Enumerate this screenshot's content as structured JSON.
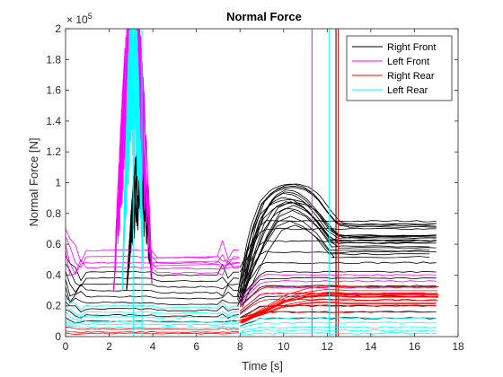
{
  "chart_data": {
    "type": "line",
    "title": "Normal Force",
    "xlabel": "Time [s]",
    "ylabel": "Normal Force [N]",
    "y_exponent_label": "× 10",
    "y_exponent_power": "5",
    "xlim": [
      0,
      18
    ],
    "ylim": [
      0,
      2
    ],
    "x_ticks": [
      0,
      2,
      4,
      6,
      8,
      10,
      12,
      14,
      16,
      18
    ],
    "x_tick_labels": [
      "0",
      "2",
      "4",
      "6",
      "8",
      "10",
      "12",
      "14",
      "16",
      "18"
    ],
    "y_ticks": [
      0,
      0.2,
      0.4,
      0.6,
      0.8,
      1,
      1.2,
      1.4,
      1.6,
      1.8,
      2
    ],
    "y_tick_labels": [
      "0",
      "0.2",
      "0.4",
      "0.6",
      "0.8",
      "1",
      "1.2",
      "1.4",
      "1.6",
      "1.8",
      "2"
    ],
    "y_units_note": "× 10^5 N",
    "grid": false,
    "legend_position": "top-right",
    "series": [
      {
        "name": "Right Front",
        "color": "#000000",
        "baseline_levels": [
          0.42,
          0.38,
          0.34,
          0.3,
          0.26,
          0.22,
          0.18,
          0.14,
          0.1
        ],
        "late_levels": [
          0.75,
          0.7,
          0.62,
          0.55,
          0.48,
          0.42,
          0.38,
          0.33,
          0.26,
          0.2,
          0.16,
          0.12
        ],
        "peak_curves": [
          {
            "x": [
              8.0,
              8.5,
              9.0,
              9.5,
              10.0,
              10.5,
              11.0,
              11.5,
              12.0,
              12.5,
              13.0
            ],
            "y": [
              0.3,
              0.7,
              0.9,
              0.98,
              1.01,
              1.02,
              1.0,
              0.95,
              0.85,
              0.76,
              0.75
            ]
          },
          {
            "x": [
              8.0,
              8.5,
              9.0,
              9.5,
              10.0,
              10.5,
              11.0,
              11.5,
              12.0,
              12.5
            ],
            "y": [
              0.25,
              0.55,
              0.78,
              0.9,
              0.94,
              0.93,
              0.88,
              0.8,
              0.7,
              0.65
            ]
          },
          {
            "x": [
              8.0,
              8.6,
              9.2,
              9.8,
              10.4,
              11.0,
              11.6,
              12.2
            ],
            "y": [
              0.22,
              0.45,
              0.65,
              0.8,
              0.84,
              0.8,
              0.72,
              0.6
            ]
          }
        ],
        "spike_window": [
          2.8,
          4.0
        ],
        "spike_peak": 1.0,
        "vertical_lines": [
          12.4
        ],
        "end_x": 17.0
      },
      {
        "name": "Left Front",
        "color": "#FF00FF",
        "baseline_levels": [
          0.56,
          0.52,
          0.48,
          0.45
        ],
        "mid_levels": [
          0.51,
          0.48,
          0.46
        ],
        "late_levels": [
          0.4,
          0.36,
          0.32,
          0.28
        ],
        "spike_window": [
          2.2,
          4.0
        ],
        "spike_peak": 2.0,
        "vertical_lines": [
          11.3
        ],
        "end_x": 17.0
      },
      {
        "name": "Right Rear",
        "color": "#FF0000",
        "baseline_levels": [
          0.05,
          0.03,
          0.02
        ],
        "late_levels": [
          0.32,
          0.28,
          0.24,
          0.2,
          0.16
        ],
        "peak_curves": [
          {
            "x": [
              8.0,
              9.0,
              10.0,
              11.0,
              12.0,
              13.0,
              17.0
            ],
            "y": [
              0.1,
              0.18,
              0.26,
              0.3,
              0.32,
              0.31,
              0.31
            ]
          },
          {
            "x": [
              8.0,
              9.0,
              10.0,
              11.0,
              12.0,
              13.0,
              17.0
            ],
            "y": [
              0.12,
              0.16,
              0.22,
              0.25,
              0.26,
              0.25,
              0.25
            ]
          }
        ],
        "vertical_lines": [
          12.5
        ],
        "end_x": 17.0
      },
      {
        "name": "Left Rear",
        "color": "#00FFFF",
        "baseline_levels": [
          0.2,
          0.16,
          0.13,
          0.1,
          0.08,
          0.06
        ],
        "late_levels": [
          0.12,
          0.09,
          0.06,
          0.04,
          0.02
        ],
        "spike_window": [
          2.6,
          3.6
        ],
        "spike_peak": 2.0,
        "vertical_lines": [
          3.1,
          3.5,
          12.1
        ],
        "end_x": 17.0
      }
    ]
  }
}
